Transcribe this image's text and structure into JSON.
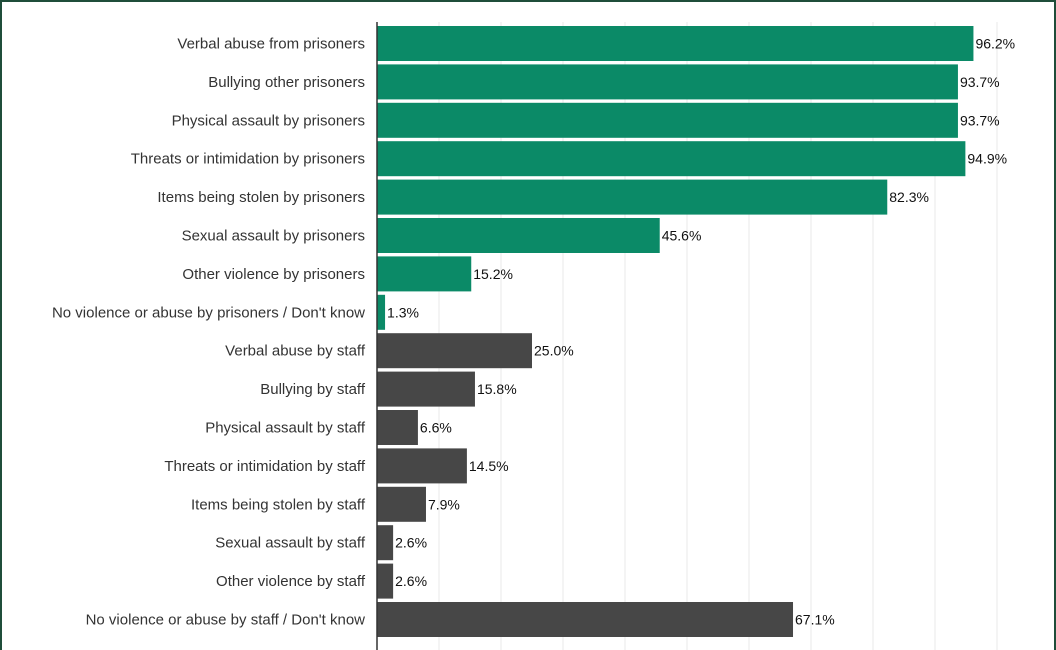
{
  "chart_data": {
    "type": "bar",
    "orientation": "horizontal",
    "xlim": [
      0,
      100
    ],
    "grid": true,
    "value_suffix": "%",
    "colors": {
      "prisoners": "#0b8a67",
      "staff": "#474747"
    },
    "categories": [
      "Verbal abuse from prisoners",
      "Bullying other prisoners",
      "Physical assault by prisoners",
      "Threats or intimidation by prisoners",
      "Items being stolen by prisoners",
      "Sexual assault by prisoners",
      "Other violence by prisoners",
      "No violence or abuse by prisoners / Don't know",
      "Verbal abuse by staff",
      "Bullying by staff",
      "Physical assault by staff",
      "Threats or intimidation by staff",
      "Items being stolen by staff",
      "Sexual assault by staff",
      "Other violence by staff",
      "No violence or abuse by staff / Don't know"
    ],
    "values": [
      96.2,
      93.7,
      93.7,
      94.9,
      82.3,
      45.6,
      15.2,
      1.3,
      25.0,
      15.8,
      6.6,
      14.5,
      7.9,
      2.6,
      2.6,
      67.1
    ],
    "labels": [
      "96.2%",
      "93.7%",
      "93.7%",
      "94.9%",
      "82.3%",
      "45.6%",
      "15.2%",
      "1.3%",
      "25.0%",
      "15.8%",
      "6.6%",
      "14.5%",
      "7.9%",
      "2.6%",
      "2.6%",
      "67.1%"
    ],
    "groups": [
      "prisoners",
      "prisoners",
      "prisoners",
      "prisoners",
      "prisoners",
      "prisoners",
      "prisoners",
      "prisoners",
      "staff",
      "staff",
      "staff",
      "staff",
      "staff",
      "staff",
      "staff",
      "staff"
    ]
  }
}
